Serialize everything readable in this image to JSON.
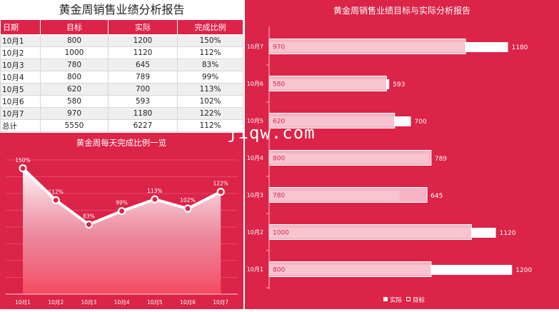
{
  "report_title": "黄金周销售业绩分析报告",
  "table": {
    "headers": [
      "日期",
      "目标",
      "实际",
      "完成比例"
    ],
    "rows": [
      [
        "10月1",
        "800",
        "1200",
        "150%"
      ],
      [
        "10月2",
        "1000",
        "1120",
        "112%"
      ],
      [
        "10月3",
        "780",
        "645",
        "83%"
      ],
      [
        "10月4",
        "800",
        "789",
        "99%"
      ],
      [
        "10月5",
        "620",
        "700",
        "113%"
      ],
      [
        "10月6",
        "580",
        "593",
        "102%"
      ],
      [
        "10月7",
        "970",
        "1180",
        "122%"
      ],
      [
        "总计",
        "5550",
        "6227",
        "112%"
      ]
    ]
  },
  "watermark": "jiqw.com",
  "chart_data": [
    {
      "type": "line",
      "title": "黄金周每天完成比例一览",
      "categories": [
        "10月1",
        "10月2",
        "10月3",
        "10月4",
        "10月5",
        "10月6",
        "10月7"
      ],
      "values": [
        150,
        112,
        83,
        99,
        113,
        102,
        122
      ],
      "data_labels": [
        "150%",
        "112%",
        "83%",
        "99%",
        "113%",
        "102%",
        "122%"
      ],
      "ylim": [
        0,
        160
      ],
      "grid": true,
      "colors": {
        "background": "#dc2348",
        "line": "#ffffff"
      }
    },
    {
      "type": "bar",
      "orientation": "horizontal",
      "title": "黄金周销售业绩目标与实际分析报告",
      "categories": [
        "10月1",
        "10月2",
        "10月3",
        "10月4",
        "10月5",
        "10月6",
        "10月7"
      ],
      "series": [
        {
          "name": "实际",
          "values": [
            1200,
            1120,
            645,
            789,
            700,
            593,
            1180
          ]
        },
        {
          "name": "目标",
          "values": [
            800,
            1000,
            780,
            800,
            620,
            580,
            970
          ]
        }
      ],
      "xlim": [
        0,
        1400
      ],
      "legend": "bottom",
      "colors": {
        "background": "#dc2348",
        "actual": "#ffffff",
        "target": "#f6bfcc"
      }
    }
  ]
}
